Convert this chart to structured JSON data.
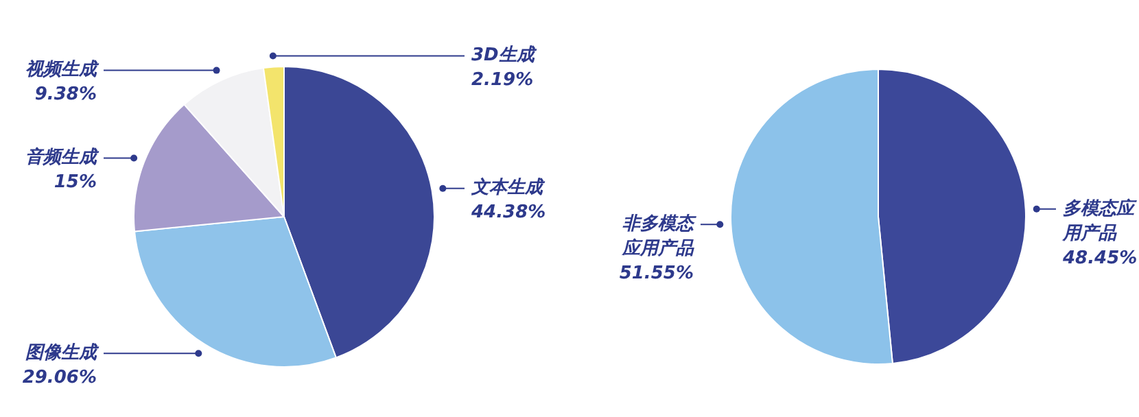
{
  "chart_data": [
    {
      "type": "pie",
      "categories": [
        "文本生成",
        "图像生成",
        "音频生成",
        "视频生成",
        "3D生成"
      ],
      "values": [
        44.38,
        29.06,
        15,
        9.38,
        2.19
      ],
      "value_labels": [
        "44.38%",
        "29.06%",
        "15%",
        "9.38%",
        "2.19%"
      ],
      "colors": [
        "#3b4795",
        "#8fc3ea",
        "#a59bcb",
        "#f2f2f4",
        "#f3e46c"
      ]
    },
    {
      "type": "pie",
      "categories": [
        "多模态应用产品",
        "非多模态应用产品"
      ],
      "values": [
        48.45,
        51.55
      ],
      "value_labels": [
        "48.45%",
        "51.55%"
      ],
      "colors": [
        "#3c4899",
        "#8cc2ea"
      ]
    }
  ]
}
